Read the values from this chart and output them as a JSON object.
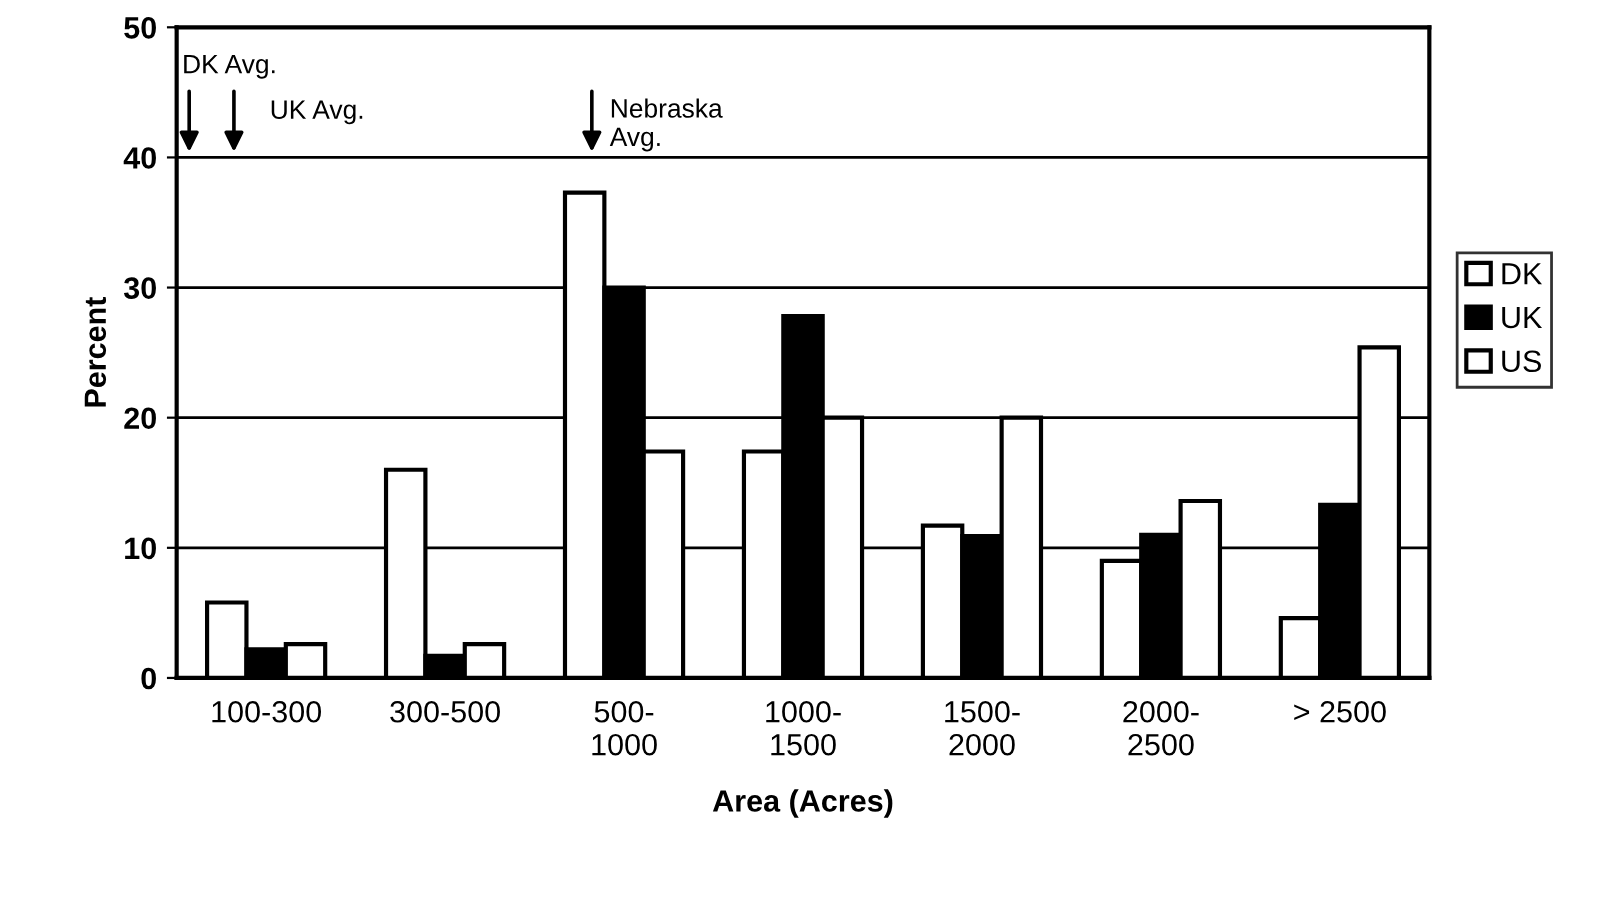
{
  "chart_data": {
    "type": "bar",
    "xlabel": "Area (Acres)",
    "ylabel": "Percent",
    "categories": [
      "100-300",
      "300-500",
      "500-\n1000",
      "1000-\n1500",
      "1500-\n2000",
      "2000-\n2500",
      "> 2500"
    ],
    "series": [
      {
        "name": "DK",
        "color": "#ffffff",
        "values": [
          5.8,
          16,
          37.3,
          17.4,
          11.7,
          9.0,
          4.6
        ]
      },
      {
        "name": "UK",
        "color": "#000000",
        "values": [
          2.2,
          1.7,
          30,
          27.8,
          10.9,
          11.0,
          13.3
        ]
      },
      {
        "name": "US",
        "color": "#ffffff",
        "values": [
          2.6,
          2.6,
          17.4,
          20,
          20,
          13.6,
          25.4
        ]
      }
    ],
    "ylim": [
      0,
      50
    ],
    "yticks": [
      0,
      10,
      20,
      30,
      40,
      50
    ],
    "grid": "y",
    "legend": "right",
    "annotations": [
      "DK Avg.",
      "UK Avg.",
      "Nebraska\nAvg."
    ]
  }
}
